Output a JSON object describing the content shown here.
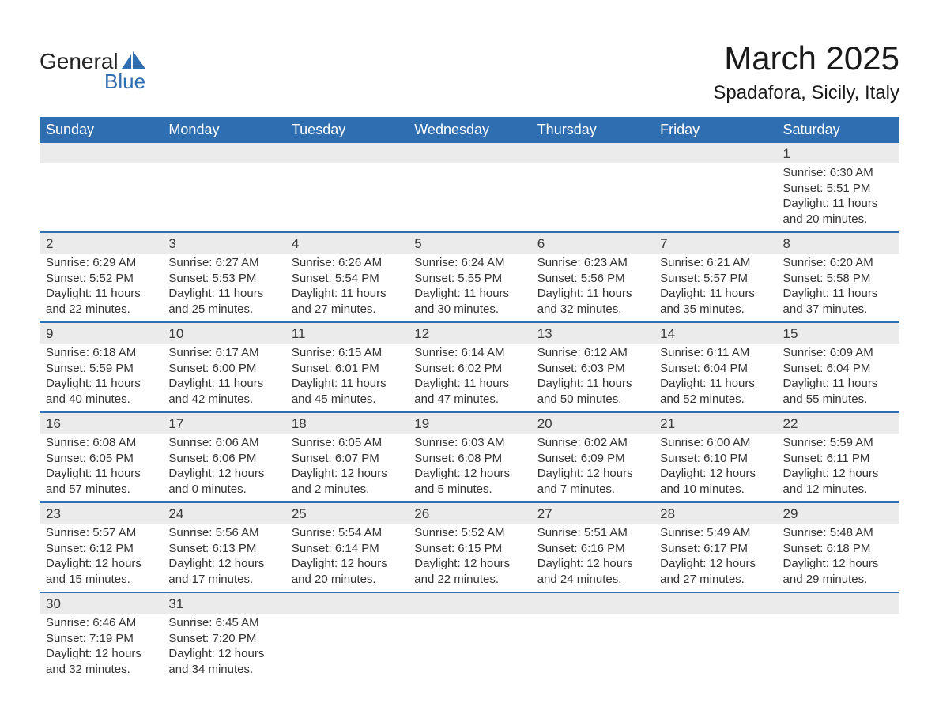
{
  "logo": {
    "text_general": "General",
    "text_blue": "Blue",
    "brand_color": "#2f6eb0"
  },
  "title": {
    "month_year": "March 2025",
    "location": "Spadafora, Sicily, Italy"
  },
  "colors": {
    "header_bg": "#2f6eb0",
    "header_text": "#ffffff",
    "daynum_bg": "#ebebeb",
    "row_divider": "#2f6eb0",
    "body_text": "#333333",
    "page_bg": "#ffffff"
  },
  "typography": {
    "title_fontsize": 42,
    "location_fontsize": 24,
    "weekday_fontsize": 18,
    "daynum_fontsize": 17,
    "body_fontsize": 15
  },
  "weekdays": [
    "Sunday",
    "Monday",
    "Tuesday",
    "Wednesday",
    "Thursday",
    "Friday",
    "Saturday"
  ],
  "weeks": [
    [
      {
        "day": "",
        "lines": [
          "",
          "",
          "",
          ""
        ]
      },
      {
        "day": "",
        "lines": [
          "",
          "",
          "",
          ""
        ]
      },
      {
        "day": "",
        "lines": [
          "",
          "",
          "",
          ""
        ]
      },
      {
        "day": "",
        "lines": [
          "",
          "",
          "",
          ""
        ]
      },
      {
        "day": "",
        "lines": [
          "",
          "",
          "",
          ""
        ]
      },
      {
        "day": "",
        "lines": [
          "",
          "",
          "",
          ""
        ]
      },
      {
        "day": "1",
        "lines": [
          "Sunrise: 6:30 AM",
          "Sunset: 5:51 PM",
          "Daylight: 11 hours",
          "and 20 minutes."
        ]
      }
    ],
    [
      {
        "day": "2",
        "lines": [
          "Sunrise: 6:29 AM",
          "Sunset: 5:52 PM",
          "Daylight: 11 hours",
          "and 22 minutes."
        ]
      },
      {
        "day": "3",
        "lines": [
          "Sunrise: 6:27 AM",
          "Sunset: 5:53 PM",
          "Daylight: 11 hours",
          "and 25 minutes."
        ]
      },
      {
        "day": "4",
        "lines": [
          "Sunrise: 6:26 AM",
          "Sunset: 5:54 PM",
          "Daylight: 11 hours",
          "and 27 minutes."
        ]
      },
      {
        "day": "5",
        "lines": [
          "Sunrise: 6:24 AM",
          "Sunset: 5:55 PM",
          "Daylight: 11 hours",
          "and 30 minutes."
        ]
      },
      {
        "day": "6",
        "lines": [
          "Sunrise: 6:23 AM",
          "Sunset: 5:56 PM",
          "Daylight: 11 hours",
          "and 32 minutes."
        ]
      },
      {
        "day": "7",
        "lines": [
          "Sunrise: 6:21 AM",
          "Sunset: 5:57 PM",
          "Daylight: 11 hours",
          "and 35 minutes."
        ]
      },
      {
        "day": "8",
        "lines": [
          "Sunrise: 6:20 AM",
          "Sunset: 5:58 PM",
          "Daylight: 11 hours",
          "and 37 minutes."
        ]
      }
    ],
    [
      {
        "day": "9",
        "lines": [
          "Sunrise: 6:18 AM",
          "Sunset: 5:59 PM",
          "Daylight: 11 hours",
          "and 40 minutes."
        ]
      },
      {
        "day": "10",
        "lines": [
          "Sunrise: 6:17 AM",
          "Sunset: 6:00 PM",
          "Daylight: 11 hours",
          "and 42 minutes."
        ]
      },
      {
        "day": "11",
        "lines": [
          "Sunrise: 6:15 AM",
          "Sunset: 6:01 PM",
          "Daylight: 11 hours",
          "and 45 minutes."
        ]
      },
      {
        "day": "12",
        "lines": [
          "Sunrise: 6:14 AM",
          "Sunset: 6:02 PM",
          "Daylight: 11 hours",
          "and 47 minutes."
        ]
      },
      {
        "day": "13",
        "lines": [
          "Sunrise: 6:12 AM",
          "Sunset: 6:03 PM",
          "Daylight: 11 hours",
          "and 50 minutes."
        ]
      },
      {
        "day": "14",
        "lines": [
          "Sunrise: 6:11 AM",
          "Sunset: 6:04 PM",
          "Daylight: 11 hours",
          "and 52 minutes."
        ]
      },
      {
        "day": "15",
        "lines": [
          "Sunrise: 6:09 AM",
          "Sunset: 6:04 PM",
          "Daylight: 11 hours",
          "and 55 minutes."
        ]
      }
    ],
    [
      {
        "day": "16",
        "lines": [
          "Sunrise: 6:08 AM",
          "Sunset: 6:05 PM",
          "Daylight: 11 hours",
          "and 57 minutes."
        ]
      },
      {
        "day": "17",
        "lines": [
          "Sunrise: 6:06 AM",
          "Sunset: 6:06 PM",
          "Daylight: 12 hours",
          "and 0 minutes."
        ]
      },
      {
        "day": "18",
        "lines": [
          "Sunrise: 6:05 AM",
          "Sunset: 6:07 PM",
          "Daylight: 12 hours",
          "and 2 minutes."
        ]
      },
      {
        "day": "19",
        "lines": [
          "Sunrise: 6:03 AM",
          "Sunset: 6:08 PM",
          "Daylight: 12 hours",
          "and 5 minutes."
        ]
      },
      {
        "day": "20",
        "lines": [
          "Sunrise: 6:02 AM",
          "Sunset: 6:09 PM",
          "Daylight: 12 hours",
          "and 7 minutes."
        ]
      },
      {
        "day": "21",
        "lines": [
          "Sunrise: 6:00 AM",
          "Sunset: 6:10 PM",
          "Daylight: 12 hours",
          "and 10 minutes."
        ]
      },
      {
        "day": "22",
        "lines": [
          "Sunrise: 5:59 AM",
          "Sunset: 6:11 PM",
          "Daylight: 12 hours",
          "and 12 minutes."
        ]
      }
    ],
    [
      {
        "day": "23",
        "lines": [
          "Sunrise: 5:57 AM",
          "Sunset: 6:12 PM",
          "Daylight: 12 hours",
          "and 15 minutes."
        ]
      },
      {
        "day": "24",
        "lines": [
          "Sunrise: 5:56 AM",
          "Sunset: 6:13 PM",
          "Daylight: 12 hours",
          "and 17 minutes."
        ]
      },
      {
        "day": "25",
        "lines": [
          "Sunrise: 5:54 AM",
          "Sunset: 6:14 PM",
          "Daylight: 12 hours",
          "and 20 minutes."
        ]
      },
      {
        "day": "26",
        "lines": [
          "Sunrise: 5:52 AM",
          "Sunset: 6:15 PM",
          "Daylight: 12 hours",
          "and 22 minutes."
        ]
      },
      {
        "day": "27",
        "lines": [
          "Sunrise: 5:51 AM",
          "Sunset: 6:16 PM",
          "Daylight: 12 hours",
          "and 24 minutes."
        ]
      },
      {
        "day": "28",
        "lines": [
          "Sunrise: 5:49 AM",
          "Sunset: 6:17 PM",
          "Daylight: 12 hours",
          "and 27 minutes."
        ]
      },
      {
        "day": "29",
        "lines": [
          "Sunrise: 5:48 AM",
          "Sunset: 6:18 PM",
          "Daylight: 12 hours",
          "and 29 minutes."
        ]
      }
    ],
    [
      {
        "day": "30",
        "lines": [
          "Sunrise: 6:46 AM",
          "Sunset: 7:19 PM",
          "Daylight: 12 hours",
          "and 32 minutes."
        ]
      },
      {
        "day": "31",
        "lines": [
          "Sunrise: 6:45 AM",
          "Sunset: 7:20 PM",
          "Daylight: 12 hours",
          "and 34 minutes."
        ]
      },
      {
        "day": "",
        "lines": [
          "",
          "",
          "",
          ""
        ]
      },
      {
        "day": "",
        "lines": [
          "",
          "",
          "",
          ""
        ]
      },
      {
        "day": "",
        "lines": [
          "",
          "",
          "",
          ""
        ]
      },
      {
        "day": "",
        "lines": [
          "",
          "",
          "",
          ""
        ]
      },
      {
        "day": "",
        "lines": [
          "",
          "",
          "",
          ""
        ]
      }
    ]
  ]
}
